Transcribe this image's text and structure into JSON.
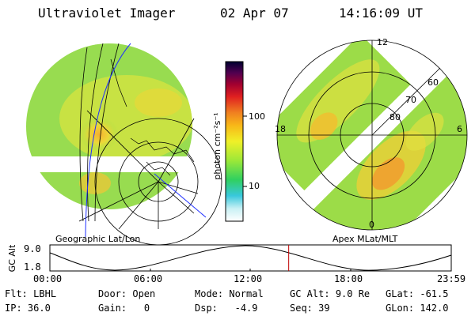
{
  "header": {
    "instrument": "Ultraviolet Imager",
    "date": "02 Apr 07",
    "time": "14:16:09 UT"
  },
  "left_panel": {
    "caption": "Geographic Lat/Lon"
  },
  "right_panel": {
    "caption": "Apex MLat/MLT",
    "mlt_labels": [
      "12",
      "18",
      "6",
      "0"
    ],
    "lat_labels": [
      "60",
      "70",
      "80"
    ]
  },
  "colorbar": {
    "unit_label": "photon cm⁻²s⁻¹",
    "tick_labels": [
      "100",
      "10"
    ]
  },
  "altitude_plot": {
    "ylabel": "GC Alt",
    "yticks": [
      "9.0",
      "1.8"
    ],
    "xticks": [
      "00:00",
      "06:00",
      "12:00",
      "18:00",
      "23:59"
    ],
    "current_time_fraction": 0.595
  },
  "status": {
    "filter_label": "Flt:",
    "filter_value": "LBHL",
    "ip_label": "IP:",
    "ip_value": "36.0",
    "door_label": "Door:",
    "door_value": "Open",
    "gain_label": "Gain:",
    "gain_value": "0",
    "mode_label": "Mode:",
    "mode_value": "Normal",
    "dsp_label": "Dsp:",
    "dsp_value": "-4.9",
    "gcalt_label": "GC Alt:",
    "gcalt_value": "9.0 Re",
    "seq_label": "Seq:",
    "seq_value": "39",
    "glat_label": "GLat:",
    "glat_value": "-61.5",
    "glon_label": "GLon:",
    "glon_value": "142.0"
  }
}
